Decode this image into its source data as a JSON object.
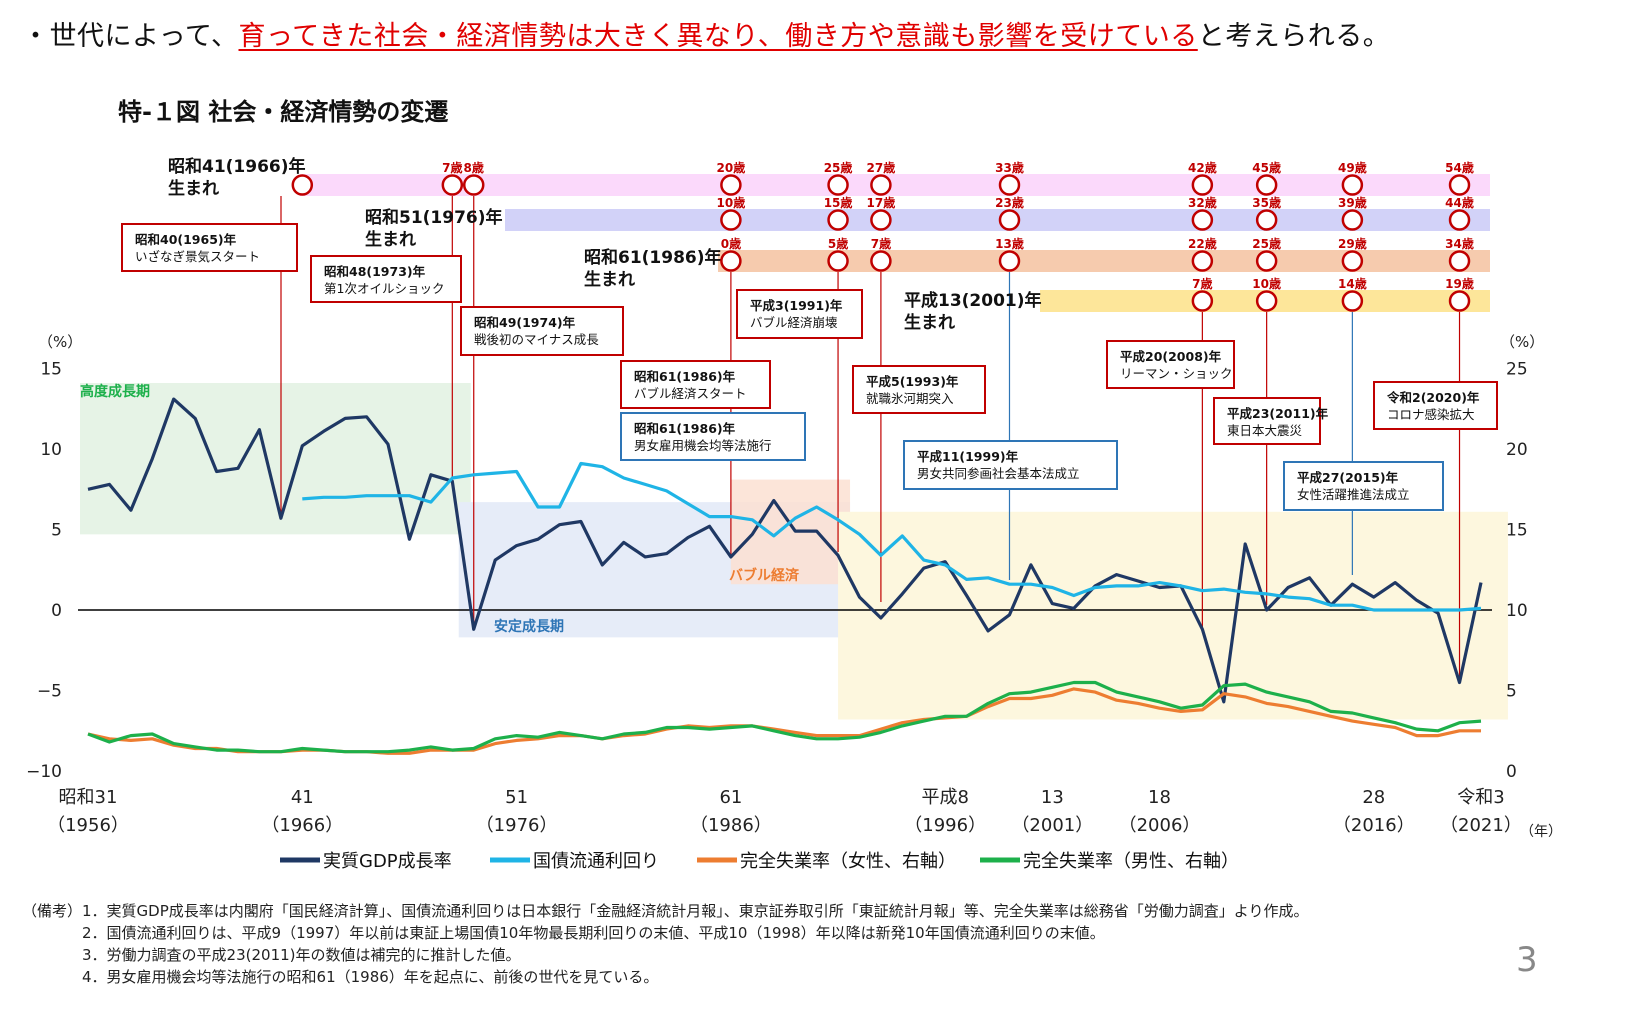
{
  "headline": {
    "prefix": "・世代によって、",
    "highlight": "育ってきた社会・経済情勢は大きく異なり、働き方や意識も影響を受けている",
    "suffix": "と考えられる。"
  },
  "chart_data": {
    "type": "line",
    "title": "特-１図 社会・経済情勢の変遷",
    "left_axis": {
      "unit": "（%）",
      "ylim": [
        -10,
        15
      ],
      "ticks": [
        "15",
        "10",
        "5",
        "0",
        "−5",
        "−10"
      ],
      "tick_values": [
        15,
        10,
        5,
        0,
        -5,
        -10
      ]
    },
    "right_axis": {
      "unit": "（%）",
      "ylim": [
        0,
        25
      ],
      "ticks": [
        "25",
        "20",
        "15",
        "10",
        "5",
        "0"
      ],
      "tick_values": [
        25,
        20,
        15,
        10,
        5,
        0
      ]
    },
    "x_unit": "（年）",
    "x_ticks": [
      {
        "year": 1956,
        "era": "昭和31",
        "ad": "（1956）"
      },
      {
        "year": 1966,
        "era": "41",
        "ad": "（1966）"
      },
      {
        "year": 1976,
        "era": "51",
        "ad": "（1976）"
      },
      {
        "year": 1986,
        "era": "61",
        "ad": "（1986）"
      },
      {
        "year": 1996,
        "era": "平成8",
        "ad": "（1996）"
      },
      {
        "year": 2001,
        "era": "13",
        "ad": "（2001）"
      },
      {
        "year": 2006,
        "era": "18",
        "ad": "（2006）"
      },
      {
        "year": 2016,
        "era": "28",
        "ad": "（2016）"
      },
      {
        "year": 2021,
        "era": "令和3",
        "ad": "（2021）"
      }
    ],
    "legend_placement": "bottom",
    "series": [
      {
        "name": "実質GDP成長率",
        "axis": "left",
        "color": "#1f3864",
        "start_year": 1956,
        "values": [
          7.5,
          7.8,
          6.2,
          9.4,
          13.1,
          11.9,
          8.6,
          8.8,
          11.2,
          5.7,
          10.2,
          11.1,
          11.9,
          12.0,
          10.3,
          4.4,
          8.4,
          8.0,
          -1.2,
          3.1,
          4.0,
          4.4,
          5.3,
          5.5,
          2.8,
          4.2,
          3.3,
          3.5,
          4.5,
          5.2,
          3.3,
          4.7,
          6.8,
          4.9,
          4.9,
          3.4,
          0.8,
          -0.5,
          1.0,
          2.6,
          3.0,
          0.9,
          -1.3,
          -0.3,
          2.8,
          0.4,
          0.1,
          1.5,
          2.2,
          1.8,
          1.4,
          1.5,
          -1.2,
          -5.7,
          4.1,
          0.0,
          1.4,
          2.0,
          0.3,
          1.6,
          0.8,
          1.7,
          0.6,
          -0.2,
          -4.5,
          1.7
        ]
      },
      {
        "name": "国債流通利回り",
        "axis": "left",
        "color": "#1fb4e6",
        "start_year": 1966,
        "values": [
          6.9,
          7.0,
          7.0,
          7.1,
          7.1,
          7.1,
          6.7,
          8.2,
          8.4,
          8.5,
          8.6,
          6.4,
          6.4,
          9.1,
          8.9,
          8.2,
          7.8,
          7.4,
          6.6,
          5.8,
          5.8,
          5.6,
          4.6,
          5.7,
          6.4,
          5.6,
          4.7,
          3.4,
          4.6,
          3.1,
          2.8,
          1.9,
          2.0,
          1.6,
          1.6,
          1.4,
          0.9,
          1.4,
          1.5,
          1.5,
          1.7,
          1.5,
          1.2,
          1.3,
          1.1,
          1.0,
          0.8,
          0.7,
          0.3,
          0.3,
          0.0,
          0.0,
          0.0,
          0.0,
          0.0,
          0.1
        ]
      },
      {
        "name": "完全失業率（女性、右軸）",
        "axis": "right",
        "color": "#ed7d31",
        "start_year": 1956,
        "values": [
          2.3,
          2.0,
          1.9,
          2.0,
          1.6,
          1.4,
          1.4,
          1.2,
          1.2,
          1.2,
          1.3,
          1.3,
          1.2,
          1.2,
          1.1,
          1.1,
          1.3,
          1.3,
          1.3,
          1.7,
          1.9,
          2.0,
          2.2,
          2.2,
          2.0,
          2.2,
          2.3,
          2.6,
          2.8,
          2.7,
          2.8,
          2.8,
          2.6,
          2.4,
          2.2,
          2.2,
          2.2,
          2.6,
          3.0,
          3.2,
          3.3,
          3.4,
          4.0,
          4.5,
          4.5,
          4.7,
          5.1,
          4.9,
          4.4,
          4.2,
          3.9,
          3.7,
          3.8,
          4.8,
          4.6,
          4.2,
          4.0,
          3.7,
          3.4,
          3.1,
          2.9,
          2.7,
          2.2,
          2.2,
          2.5,
          2.5
        ]
      },
      {
        "name": "完全失業率（男性、右軸）",
        "axis": "right",
        "color": "#1db04b",
        "start_year": 1956,
        "values": [
          2.3,
          1.8,
          2.2,
          2.3,
          1.7,
          1.5,
          1.3,
          1.3,
          1.2,
          1.2,
          1.4,
          1.3,
          1.2,
          1.2,
          1.2,
          1.3,
          1.5,
          1.3,
          1.4,
          2.0,
          2.2,
          2.1,
          2.4,
          2.2,
          2.0,
          2.3,
          2.4,
          2.7,
          2.7,
          2.6,
          2.7,
          2.8,
          2.5,
          2.2,
          2.0,
          2.0,
          2.1,
          2.4,
          2.8,
          3.1,
          3.4,
          3.4,
          4.2,
          4.8,
          4.9,
          5.2,
          5.5,
          5.5,
          4.9,
          4.6,
          4.3,
          3.9,
          4.1,
          5.3,
          5.4,
          4.9,
          4.6,
          4.3,
          3.7,
          3.6,
          3.3,
          3.0,
          2.6,
          2.5,
          3.0,
          3.1
        ]
      }
    ],
    "periods": [
      {
        "label": "高度成長期",
        "from": 1955.6,
        "to": 1973.3,
        "color": "#e6f3e6",
        "label_color": "#1db04b"
      },
      {
        "label": "安定成長期",
        "from": 1973.3,
        "to": 1991,
        "color": "#e6ecf8",
        "label_color": "#2e75b6"
      },
      {
        "label": "バブル経済",
        "from": 1986,
        "to": 1991,
        "color": "#fbe1d2",
        "label_color": "#ed7d31"
      },
      {
        "label": "",
        "from": 1991,
        "to": 2021.7,
        "color": "#fdf7de",
        "label_color": ""
      }
    ],
    "generations": [
      {
        "label_line1": "昭和41(1966)年",
        "label_line2": "生まれ",
        "birth_year": 1966,
        "band_color": "#fbd9fb",
        "marks": [
          {
            "year": 1966,
            "age": ""
          },
          {
            "year": 1973,
            "age": "7歳"
          },
          {
            "year": 1974,
            "age": "8歳"
          },
          {
            "year": 1986,
            "age": "20歳"
          },
          {
            "year": 1991,
            "age": "25歳"
          },
          {
            "year": 1993,
            "age": "27歳"
          },
          {
            "year": 1999,
            "age": "33歳"
          },
          {
            "year": 2008,
            "age": "42歳"
          },
          {
            "year": 2011,
            "age": "45歳"
          },
          {
            "year": 2015,
            "age": "49歳"
          },
          {
            "year": 2020,
            "age": "54歳"
          }
        ]
      },
      {
        "label_line1": "昭和51(1976)年",
        "label_line2": "生まれ",
        "birth_year": 1976,
        "band_color": "#d2d2f8",
        "marks": [
          {
            "year": 1986,
            "age": "10歳"
          },
          {
            "year": 1991,
            "age": "15歳"
          },
          {
            "year": 1993,
            "age": "17歳"
          },
          {
            "year": 1999,
            "age": "23歳"
          },
          {
            "year": 2008,
            "age": "32歳"
          },
          {
            "year": 2011,
            "age": "35歳"
          },
          {
            "year": 2015,
            "age": "39歳"
          },
          {
            "year": 2020,
            "age": "44歳"
          }
        ]
      },
      {
        "label_line1": "昭和61(1986)年",
        "label_line2": "生まれ",
        "birth_year": 1986,
        "band_color": "#f6cbae",
        "marks": [
          {
            "year": 1986,
            "age": "0歳"
          },
          {
            "year": 1991,
            "age": "5歳"
          },
          {
            "year": 1993,
            "age": "7歳"
          },
          {
            "year": 1999,
            "age": "13歳"
          },
          {
            "year": 2008,
            "age": "22歳"
          },
          {
            "year": 2011,
            "age": "25歳"
          },
          {
            "year": 2015,
            "age": "29歳"
          },
          {
            "year": 2020,
            "age": "34歳"
          }
        ]
      },
      {
        "label_line1": "平成13(2001)年",
        "label_line2": "生まれ",
        "birth_year": 2001,
        "band_color": "#fde69a",
        "marks": [
          {
            "year": 2008,
            "age": "7歳"
          },
          {
            "year": 2011,
            "age": "10歳"
          },
          {
            "year": 2015,
            "age": "14歳"
          },
          {
            "year": 2020,
            "age": "19歳"
          }
        ]
      }
    ],
    "events": [
      {
        "date": "昭和40(1965)年",
        "text": "いざなぎ景気スタート",
        "year": 1965,
        "kind": "economy"
      },
      {
        "date": "昭和48(1973)年",
        "text": "第1次オイルショック",
        "year": 1973,
        "kind": "economy"
      },
      {
        "date": "昭和49(1974)年",
        "text": "戦後初のマイナス成長",
        "year": 1974,
        "kind": "economy"
      },
      {
        "date": "平成3(1991)年",
        "text": "バブル経済崩壊",
        "year": 1991,
        "kind": "economy"
      },
      {
        "date": "昭和61(1986)年",
        "text": "バブル経済スタート",
        "year": 1986,
        "kind": "economy"
      },
      {
        "date": "昭和61(1986)年",
        "text": "男女雇用機会均等法施行",
        "year": 1986,
        "kind": "gender"
      },
      {
        "date": "平成5(1993)年",
        "text": "就職氷河期突入",
        "year": 1993,
        "kind": "economy"
      },
      {
        "date": "平成11(1999)年",
        "text": "男女共同参画社会基本法成立",
        "year": 1999,
        "kind": "gender"
      },
      {
        "date": "平成20(2008)年",
        "text": "リーマン・ショック",
        "year": 2008,
        "kind": "economy"
      },
      {
        "date": "平成23(2011)年",
        "text": "東日本大震災",
        "year": 2011,
        "kind": "economy"
      },
      {
        "date": "平成27(2015)年",
        "text": "女性活躍推進法成立",
        "year": 2015,
        "kind": "gender"
      },
      {
        "date": "令和2(2020)年",
        "text": "コロナ感染拡大",
        "year": 2020,
        "kind": "economy"
      }
    ],
    "colors": {
      "economy_event": "#c00000",
      "gender_event": "#2e75b6",
      "age_label": "#c00000"
    }
  },
  "notes": [
    "（備考）1．実質GDP成長率は内閣府「国民経済計算」、国債流通利回りは日本銀行「金融経済統計月報」、東京証券取引所「東証統計月報」等、完全失業率は総務省「労働力調査」より作成。",
    "2．国債流通利回りは、平成9（1997）年以前は東証上場国債10年物最長期利回りの末値、平成10（1998）年以降は新発10年国債流通利回りの末値。",
    "3．労働力調査の平成23(2011)年の数値は補完的に推計した値。",
    "4．男女雇用機会均等法施行の昭和61（1986）年を起点に、前後の世代を見ている。"
  ],
  "page_number": "3"
}
